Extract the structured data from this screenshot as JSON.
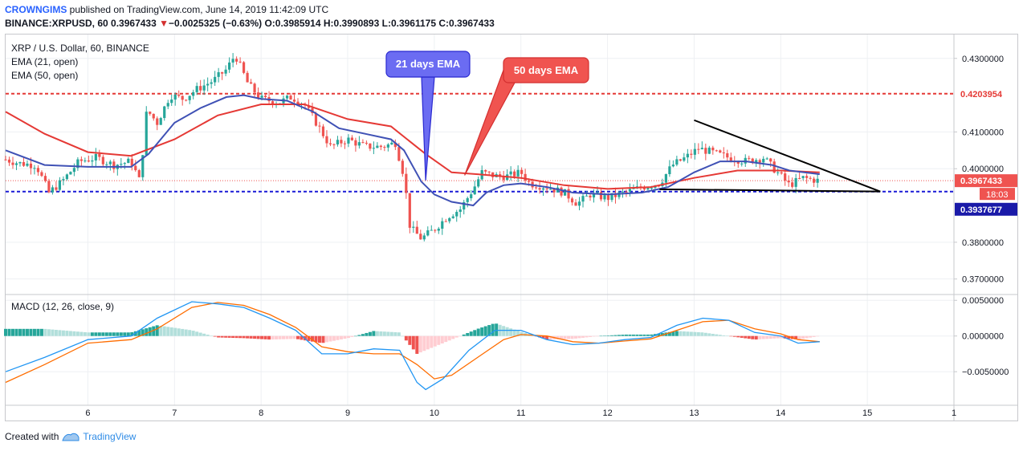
{
  "header": {
    "publisher": "CROWNGIMS",
    "published_text": "published on TradingView.com, June 14, 2019 11:42:09 UTC",
    "symbol_line": {
      "symbol": "BINANCE:XRPUSD, 60",
      "last": "0.3967433",
      "arrow": "▼",
      "change": "−0.0025325 (−0.63%)",
      "open_label": "O:",
      "open": "0.3985914",
      "high_label": "H:",
      "high": "0.3990893",
      "low_label": "L:",
      "low": "0.3961175",
      "close_label": "C:",
      "close": "0.3967433"
    }
  },
  "legend": {
    "title": "XRP / U.S. Dollar, 60, BINANCE",
    "ema21": "EMA (21, open)",
    "ema50": "EMA (50, open)",
    "macd": "MACD (12, 26, close, 9)"
  },
  "annotations": {
    "ema21_callout": "21 days EMA",
    "ema50_callout": "50 days EMA"
  },
  "price_labels": {
    "resistance": "0.4203954",
    "current": "0.3967433",
    "countdown": "18:03",
    "support": "0.3937677"
  },
  "colors": {
    "up": "#26a69a",
    "down": "#ef5350",
    "ema21": "#3f51b5",
    "ema50": "#e53935",
    "macd_line": "#2196f3",
    "signal_line": "#ff6d00",
    "resistance": "#e53935",
    "support": "#1a1ad6",
    "callout_blue": "#6b6cf2",
    "callout_red": "#f05450"
  },
  "footer": {
    "created_with": "Created with",
    "brand": "TradingView"
  },
  "chart_data": [
    {
      "type": "candlestick",
      "title": "XRP / U.S. Dollar, 60, BINANCE",
      "x_ticks": [
        "6",
        "7",
        "8",
        "9",
        "10",
        "11",
        "12",
        "13",
        "14",
        "15",
        "1"
      ],
      "x_tick_values": [
        6,
        7,
        8,
        9,
        10,
        11,
        12,
        13,
        14,
        15,
        16
      ],
      "xlim": [
        5.05,
        16.0
      ],
      "y_ticks": [
        "0.4300000",
        "0.4100000",
        "0.4000000",
        "0.3800000",
        "0.3700000"
      ],
      "y_tick_values": [
        0.43,
        0.41,
        0.4,
        0.38,
        0.37
      ],
      "ylim": [
        0.366,
        0.4365
      ],
      "grid": true,
      "levels": {
        "resistance": 0.4203954,
        "support": 0.3937677,
        "current": 0.3967433
      },
      "trendlines": [
        {
          "name": "descending",
          "points": [
            [
              13.0,
              0.4132
            ],
            [
              15.15,
              0.3938
            ]
          ]
        },
        {
          "name": "flat",
          "points": [
            [
              12.6,
              0.3944
            ],
            [
              15.15,
              0.3938
            ]
          ]
        }
      ],
      "price_path": [
        [
          5.05,
          0.4025
        ],
        [
          5.2,
          0.4015
        ],
        [
          5.4,
          0.401
        ],
        [
          5.55,
          0.3935
        ],
        [
          5.7,
          0.3965
        ],
        [
          5.9,
          0.402
        ],
        [
          6.1,
          0.403
        ],
        [
          6.3,
          0.401
        ],
        [
          6.5,
          0.402
        ],
        [
          6.6,
          0.3965
        ],
        [
          6.68,
          0.416
        ],
        [
          6.8,
          0.4125
        ],
        [
          6.95,
          0.42
        ],
        [
          7.1,
          0.419
        ],
        [
          7.25,
          0.4215
        ],
        [
          7.45,
          0.424
        ],
        [
          7.6,
          0.427
        ],
        [
          7.7,
          0.431
        ],
        [
          7.85,
          0.423
        ],
        [
          8.0,
          0.419
        ],
        [
          8.2,
          0.418
        ],
        [
          8.35,
          0.4195
        ],
        [
          8.5,
          0.4175
        ],
        [
          8.65,
          0.412
        ],
        [
          8.8,
          0.406
        ],
        [
          9.0,
          0.408
        ],
        [
          9.2,
          0.406
        ],
        [
          9.4,
          0.406
        ],
        [
          9.55,
          0.407
        ],
        [
          9.65,
          0.398
        ],
        [
          9.72,
          0.384
        ],
        [
          9.85,
          0.381
        ],
        [
          10.0,
          0.3835
        ],
        [
          10.15,
          0.387
        ],
        [
          10.3,
          0.389
        ],
        [
          10.45,
          0.3945
        ],
        [
          10.55,
          0.399
        ],
        [
          10.7,
          0.398
        ],
        [
          10.85,
          0.398
        ],
        [
          11.0,
          0.399
        ],
        [
          11.1,
          0.396
        ],
        [
          11.3,
          0.395
        ],
        [
          11.5,
          0.3935
        ],
        [
          11.65,
          0.3905
        ],
        [
          11.8,
          0.393
        ],
        [
          12.0,
          0.392
        ],
        [
          12.2,
          0.3935
        ],
        [
          12.4,
          0.395
        ],
        [
          12.6,
          0.396
        ],
        [
          12.75,
          0.401
        ],
        [
          12.9,
          0.403
        ],
        [
          13.05,
          0.4055
        ],
        [
          13.2,
          0.4045
        ],
        [
          13.4,
          0.403
        ],
        [
          13.6,
          0.402
        ],
        [
          13.8,
          0.403
        ],
        [
          14.0,
          0.398
        ],
        [
          14.1,
          0.3955
        ],
        [
          14.25,
          0.3975
        ],
        [
          14.45,
          0.3967
        ]
      ],
      "series": [
        {
          "name": "EMA (21, open)",
          "points": [
            [
              5.05,
              0.405
            ],
            [
              5.5,
              0.401
            ],
            [
              6.0,
              0.4005
            ],
            [
              6.5,
              0.4005
            ],
            [
              6.7,
              0.404
            ],
            [
              7.0,
              0.4125
            ],
            [
              7.3,
              0.4165
            ],
            [
              7.6,
              0.4195
            ],
            [
              7.8,
              0.42
            ],
            [
              8.0,
              0.419
            ],
            [
              8.3,
              0.4185
            ],
            [
              8.6,
              0.4155
            ],
            [
              8.9,
              0.411
            ],
            [
              9.2,
              0.4095
            ],
            [
              9.5,
              0.408
            ],
            [
              9.65,
              0.405
            ],
            [
              9.85,
              0.3965
            ],
            [
              10.0,
              0.393
            ],
            [
              10.2,
              0.391
            ],
            [
              10.45,
              0.39
            ],
            [
              10.6,
              0.3935
            ],
            [
              10.8,
              0.3955
            ],
            [
              11.0,
              0.396
            ],
            [
              11.3,
              0.395
            ],
            [
              11.6,
              0.3935
            ],
            [
              12.0,
              0.393
            ],
            [
              12.4,
              0.3935
            ],
            [
              12.7,
              0.395
            ],
            [
              13.0,
              0.399
            ],
            [
              13.3,
              0.402
            ],
            [
              13.6,
              0.402
            ],
            [
              13.9,
              0.401
            ],
            [
              14.1,
              0.3995
            ],
            [
              14.45,
              0.3985
            ]
          ]
        },
        {
          "name": "EMA (50, open)",
          "points": [
            [
              5.05,
              0.4155
            ],
            [
              5.5,
              0.4095
            ],
            [
              6.0,
              0.4045
            ],
            [
              6.5,
              0.4035
            ],
            [
              7.0,
              0.408
            ],
            [
              7.5,
              0.4145
            ],
            [
              8.0,
              0.4175
            ],
            [
              8.5,
              0.4175
            ],
            [
              9.0,
              0.4135
            ],
            [
              9.5,
              0.4115
            ],
            [
              9.9,
              0.404
            ],
            [
              10.2,
              0.399
            ],
            [
              10.5,
              0.3985
            ],
            [
              11.0,
              0.3975
            ],
            [
              11.5,
              0.3955
            ],
            [
              12.0,
              0.3945
            ],
            [
              12.5,
              0.395
            ],
            [
              13.0,
              0.3975
            ],
            [
              13.5,
              0.3995
            ],
            [
              14.0,
              0.3995
            ],
            [
              14.45,
              0.399
            ]
          ]
        }
      ]
    },
    {
      "type": "bar",
      "title": "MACD (12, 26, close, 9)",
      "y_ticks": [
        "0.0050000",
        "0.0000000",
        "−0.0050000"
      ],
      "y_tick_values": [
        0.005,
        0.0,
        -0.005
      ],
      "ylim": [
        -0.0097,
        0.0057
      ],
      "series": [
        {
          "name": "MACD",
          "points": [
            [
              5.05,
              -0.005
            ],
            [
              5.5,
              -0.003
            ],
            [
              6.0,
              -0.0005
            ],
            [
              6.5,
              0.0
            ],
            [
              6.8,
              0.0025
            ],
            [
              7.2,
              0.0048
            ],
            [
              7.5,
              0.0045
            ],
            [
              7.8,
              0.004
            ],
            [
              8.1,
              0.0025
            ],
            [
              8.4,
              0.0008
            ],
            [
              8.7,
              -0.0025
            ],
            [
              9.0,
              -0.0025
            ],
            [
              9.3,
              -0.0018
            ],
            [
              9.6,
              -0.002
            ],
            [
              9.8,
              -0.0065
            ],
            [
              9.9,
              -0.0075
            ],
            [
              10.1,
              -0.006
            ],
            [
              10.4,
              -0.002
            ],
            [
              10.7,
              0.0008
            ],
            [
              11.0,
              0.0008
            ],
            [
              11.3,
              -0.0005
            ],
            [
              11.6,
              -0.0012
            ],
            [
              11.9,
              -0.001
            ],
            [
              12.2,
              -0.0005
            ],
            [
              12.5,
              -0.0002
            ],
            [
              12.8,
              0.0015
            ],
            [
              13.1,
              0.0025
            ],
            [
              13.4,
              0.0022
            ],
            [
              13.7,
              0.0005
            ],
            [
              14.0,
              0.0
            ],
            [
              14.2,
              -0.001
            ],
            [
              14.45,
              -0.0008
            ]
          ]
        },
        {
          "name": "Signal",
          "points": [
            [
              5.05,
              -0.0065
            ],
            [
              5.5,
              -0.004
            ],
            [
              6.0,
              -0.001
            ],
            [
              6.5,
              -0.0005
            ],
            [
              6.8,
              0.001
            ],
            [
              7.2,
              0.004
            ],
            [
              7.5,
              0.0047
            ],
            [
              7.8,
              0.0043
            ],
            [
              8.1,
              0.003
            ],
            [
              8.4,
              0.0012
            ],
            [
              8.7,
              -0.0015
            ],
            [
              9.0,
              -0.0022
            ],
            [
              9.3,
              -0.0025
            ],
            [
              9.6,
              -0.0025
            ],
            [
              9.8,
              -0.004
            ],
            [
              10.0,
              -0.006
            ],
            [
              10.2,
              -0.0055
            ],
            [
              10.5,
              -0.003
            ],
            [
              10.8,
              -0.0005
            ],
            [
              11.0,
              0.0002
            ],
            [
              11.3,
              0.0
            ],
            [
              11.6,
              -0.0008
            ],
            [
              11.9,
              -0.001
            ],
            [
              12.2,
              -0.0007
            ],
            [
              12.5,
              -0.0004
            ],
            [
              12.8,
              0.0008
            ],
            [
              13.1,
              0.002
            ],
            [
              13.4,
              0.0022
            ],
            [
              13.7,
              0.001
            ],
            [
              14.0,
              0.0003
            ],
            [
              14.2,
              -0.0005
            ],
            [
              14.45,
              -0.0008
            ]
          ]
        },
        {
          "name": "Histogram",
          "points": [
            [
              5.05,
              0.001
            ],
            [
              5.5,
              0.001
            ],
            [
              6.0,
              0.0005
            ],
            [
              6.5,
              0.0005
            ],
            [
              6.8,
              0.0015
            ],
            [
              7.2,
              0.0008
            ],
            [
              7.5,
              -0.0002
            ],
            [
              7.8,
              -0.0003
            ],
            [
              8.1,
              -0.0005
            ],
            [
              8.4,
              -0.0004
            ],
            [
              8.7,
              -0.001
            ],
            [
              9.0,
              -0.0003
            ],
            [
              9.3,
              0.0007
            ],
            [
              9.6,
              0.0005
            ],
            [
              9.8,
              -0.0025
            ],
            [
              10.0,
              -0.0015
            ],
            [
              10.2,
              -0.0005
            ],
            [
              10.5,
              0.001
            ],
            [
              10.7,
              0.0018
            ],
            [
              11.0,
              0.0006
            ],
            [
              11.3,
              -0.0005
            ],
            [
              11.6,
              -0.0004
            ],
            [
              11.9,
              0.0
            ],
            [
              12.2,
              0.0002
            ],
            [
              12.5,
              0.0002
            ],
            [
              12.8,
              0.0007
            ],
            [
              13.1,
              0.0005
            ],
            [
              13.4,
              0.0
            ],
            [
              13.7,
              -0.0005
            ],
            [
              14.0,
              -0.0003
            ],
            [
              14.2,
              -0.0005
            ],
            [
              14.45,
              0.0
            ]
          ]
        }
      ]
    }
  ]
}
